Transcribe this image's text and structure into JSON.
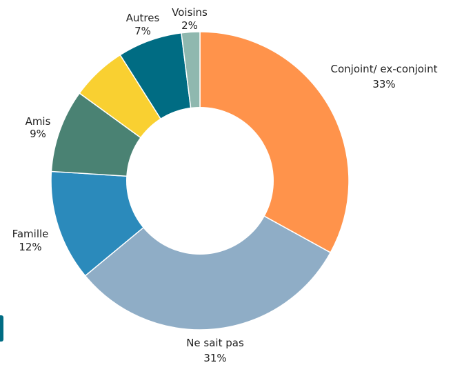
{
  "chart_data": {
    "type": "pie",
    "donut": true,
    "start_angle_deg": 0,
    "direction": "clockwise",
    "slices": [
      {
        "label": "Conjoint/ ex-conjoint",
        "value": 33,
        "value_label": "33%",
        "color": "#FF934B"
      },
      {
        "label": "Ne sait pas",
        "value": 31,
        "value_label": "31%",
        "color": "#8FADC6"
      },
      {
        "label": "Famille",
        "value": 12,
        "value_label": "12%",
        "color": "#2B8ABB"
      },
      {
        "label": "Amis",
        "value": 9,
        "value_label": "9%",
        "color": "#4A8273"
      },
      {
        "label": "",
        "value": 6,
        "value_label": "",
        "color": "#F9D031"
      },
      {
        "label": "Autres",
        "value": 7,
        "value_label": "7%",
        "color": "#006C83"
      },
      {
        "label": "Voisins",
        "value": 2,
        "value_label": "2%",
        "color": "#8FB8AF"
      }
    ]
  },
  "side_marker": {
    "color": "#006C83"
  }
}
